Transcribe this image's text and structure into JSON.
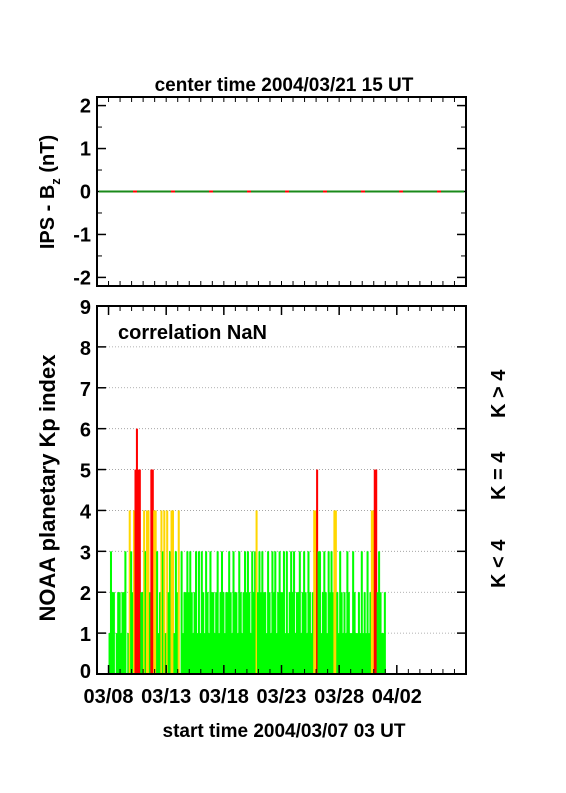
{
  "top_title": "center time 2004/03/21 15 UT",
  "bottom_title": "start time 2004/03/07 03 UT",
  "colors": {
    "k_lt_4": "#00ff00",
    "k_eq_4": "#ffd700",
    "k_gt_4": "#ff0000",
    "bz_line_a": "#1a8a1a",
    "bz_line_b": "#ff0000"
  },
  "chart_data": [
    {
      "type": "line",
      "ylabel_main": "IPS - B",
      "ylabel_sub": "z",
      "ylabel_unit": " (nT)",
      "ylim": [
        -2.2,
        2.2
      ],
      "yticks": [
        "2",
        "1",
        "0",
        "-1",
        "-2"
      ],
      "ytick_values": [
        2,
        1,
        0,
        -1,
        -2
      ],
      "series": [
        {
          "values": [
            0,
            0
          ]
        }
      ],
      "grid": false
    },
    {
      "type": "bar",
      "ylabel": "NOAA planetary Kp index",
      "annotation": "correlation NaN",
      "ylim": [
        0,
        9
      ],
      "yticks": [
        "0",
        "1",
        "2",
        "3",
        "4",
        "5",
        "6",
        "7",
        "8",
        "9"
      ],
      "xticks": [
        "03/08",
        "03/13",
        "03/18",
        "03/23",
        "03/28",
        "04/02"
      ],
      "xlim_days_from_start": [
        0,
        32
      ],
      "legend": [
        "K < 4",
        "K = 4",
        "K > 4"
      ],
      "legend_placement": "right",
      "grid": "horizontal dotted",
      "kp_3hour": [
        1,
        3,
        2,
        2,
        0,
        1,
        2,
        2,
        1,
        2,
        2,
        3,
        0,
        1,
        4,
        3,
        2,
        4,
        5,
        6,
        5,
        5,
        2,
        2,
        4,
        3,
        4,
        4,
        2,
        5,
        5,
        4,
        4,
        3,
        1,
        2,
        4,
        3,
        4,
        1,
        4,
        2,
        3,
        4,
        4,
        1,
        3,
        2,
        4,
        0,
        3,
        1,
        2,
        2,
        3,
        2,
        3,
        2,
        1,
        2,
        3,
        1,
        3,
        1,
        3,
        2,
        1,
        3,
        2,
        1,
        3,
        2,
        2,
        1,
        2,
        3,
        1,
        2,
        3,
        2,
        1,
        2,
        2,
        3,
        2,
        1,
        3,
        2,
        2,
        1,
        3,
        2,
        1,
        2,
        3,
        2,
        3,
        2,
        1,
        3,
        2,
        3,
        4,
        2,
        3,
        2,
        3,
        2,
        2,
        1,
        3,
        2,
        1,
        3,
        2,
        3,
        1,
        2,
        3,
        2,
        2,
        3,
        1,
        3,
        1,
        2,
        3,
        2,
        3,
        1,
        2,
        2,
        3,
        1,
        2,
        3,
        2,
        1,
        3,
        2,
        1,
        2,
        4,
        4,
        5,
        3,
        3,
        1,
        2,
        3,
        2,
        1,
        3,
        2,
        3,
        2,
        4,
        4,
        2,
        1,
        3,
        2,
        1,
        2,
        1,
        3,
        2,
        1,
        1,
        3,
        2,
        1,
        1,
        2,
        1,
        3,
        1,
        2,
        1,
        3,
        1,
        2,
        4,
        4,
        5,
        5,
        2,
        3,
        2,
        1,
        1,
        2
      ]
    }
  ]
}
